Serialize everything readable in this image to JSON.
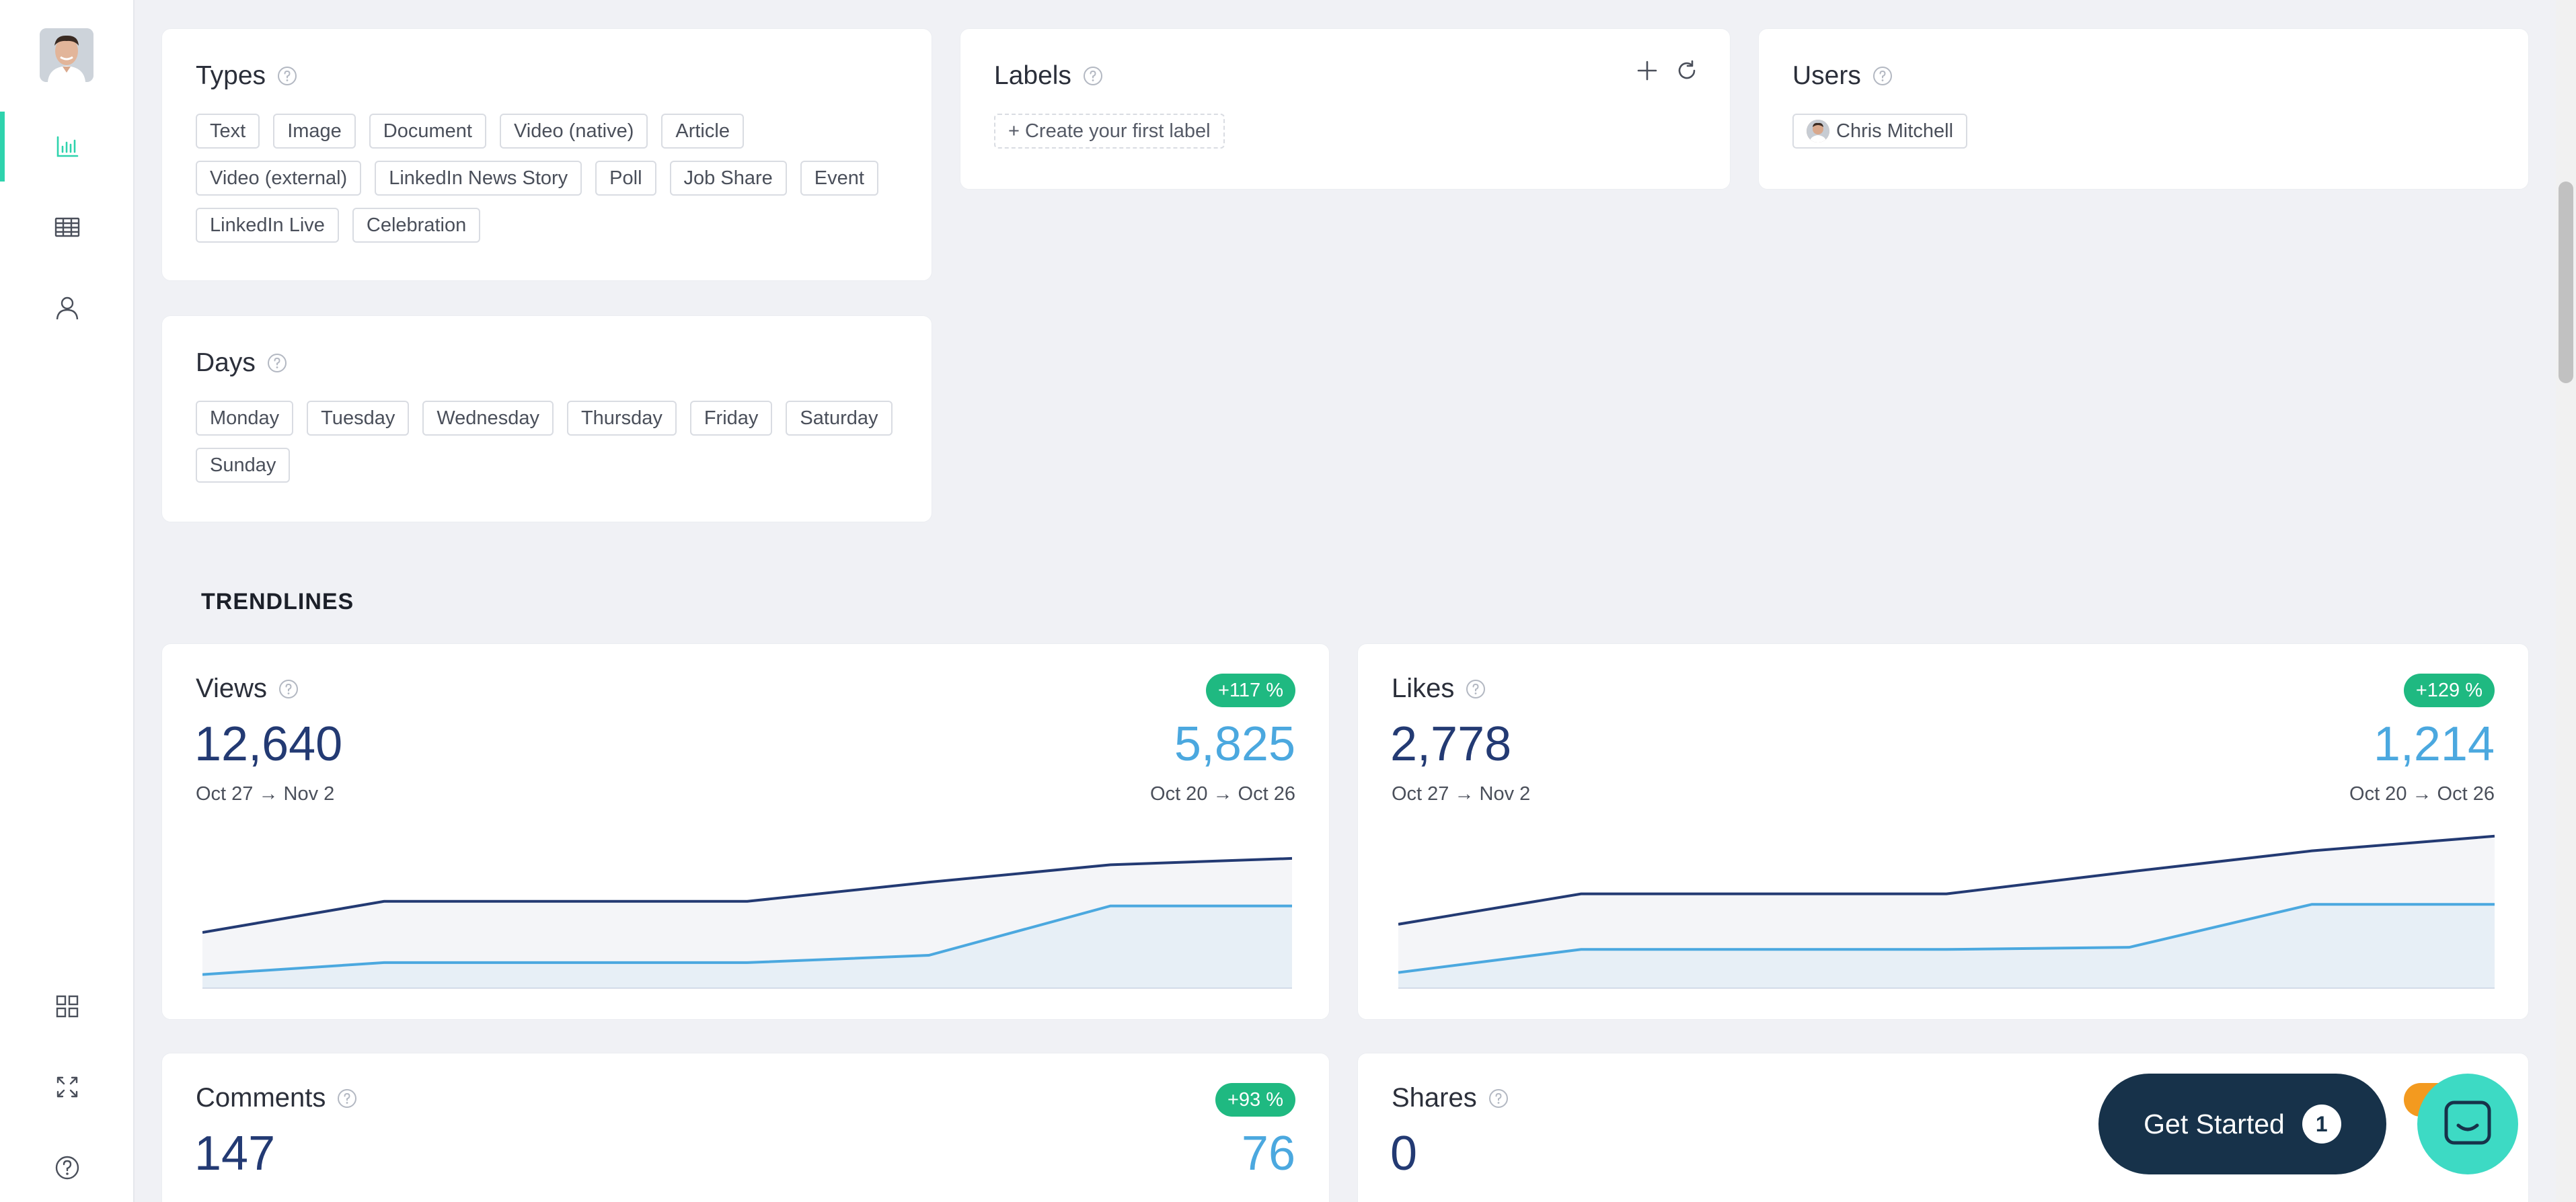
{
  "filters": {
    "types": {
      "title": "Types",
      "items": [
        "Text",
        "Image",
        "Document",
        "Video (native)",
        "Article",
        "Video (external)",
        "LinkedIn News Story",
        "Poll",
        "Job Share",
        "Event",
        "LinkedIn Live",
        "Celebration"
      ]
    },
    "labels": {
      "title": "Labels",
      "create_label": "+ Create your first label"
    },
    "users": {
      "title": "Users",
      "items": [
        "Chris Mitchell"
      ]
    },
    "days": {
      "title": "Days",
      "items": [
        "Monday",
        "Tuesday",
        "Wednesday",
        "Thursday",
        "Friday",
        "Saturday",
        "Sunday"
      ]
    }
  },
  "trendlines": {
    "section_title": "TRENDLINES",
    "views": {
      "title": "Views",
      "badge": "+117 %",
      "current": "12,640",
      "previous": "5,825",
      "current_range": "Oct 27 → Nov 2",
      "previous_range": "Oct 20 → Oct 26"
    },
    "likes": {
      "title": "Likes",
      "badge": "+129 %",
      "current": "2,778",
      "previous": "1,214",
      "current_range": "Oct 27 → Nov 2",
      "previous_range": "Oct 20 → Oct 26"
    },
    "comments": {
      "title": "Comments",
      "badge": "+93 %",
      "current": "147",
      "previous": "76"
    },
    "shares": {
      "title": "Shares",
      "current": "0"
    }
  },
  "cta": {
    "label": "Get Started",
    "count": "1"
  },
  "colors": {
    "accent": "#2ed3ad",
    "current_series": "#233a73",
    "previous_series": "#4ba8df",
    "badge_positive": "#1fb981",
    "badge_warning": "#f39a1f",
    "cta_background": "#17324a",
    "chat_bubble": "#3ddac4"
  },
  "chart_data": [
    {
      "type": "area",
      "series": [
        {
          "values": [
            0.11,
            0.45,
            0.45,
            0.45,
            0.66,
            0.85,
            0.92
          ]
        },
        {
          "values": [
            -0.35,
            -0.22,
            -0.22,
            -0.22,
            -0.14,
            0.4,
            0.4
          ]
        }
      ],
      "ylim": [
        -0.5,
        1.0
      ]
    },
    {
      "type": "area",
      "series": [
        {
          "values": [
            0.11,
            0.4,
            0.4,
            0.4,
            0.61,
            0.81,
            0.95
          ]
        },
        {
          "values": [
            -0.35,
            -0.13,
            -0.13,
            -0.13,
            -0.11,
            0.3,
            0.3
          ]
        }
      ],
      "ylim": [
        -0.5,
        1.0
      ]
    }
  ]
}
